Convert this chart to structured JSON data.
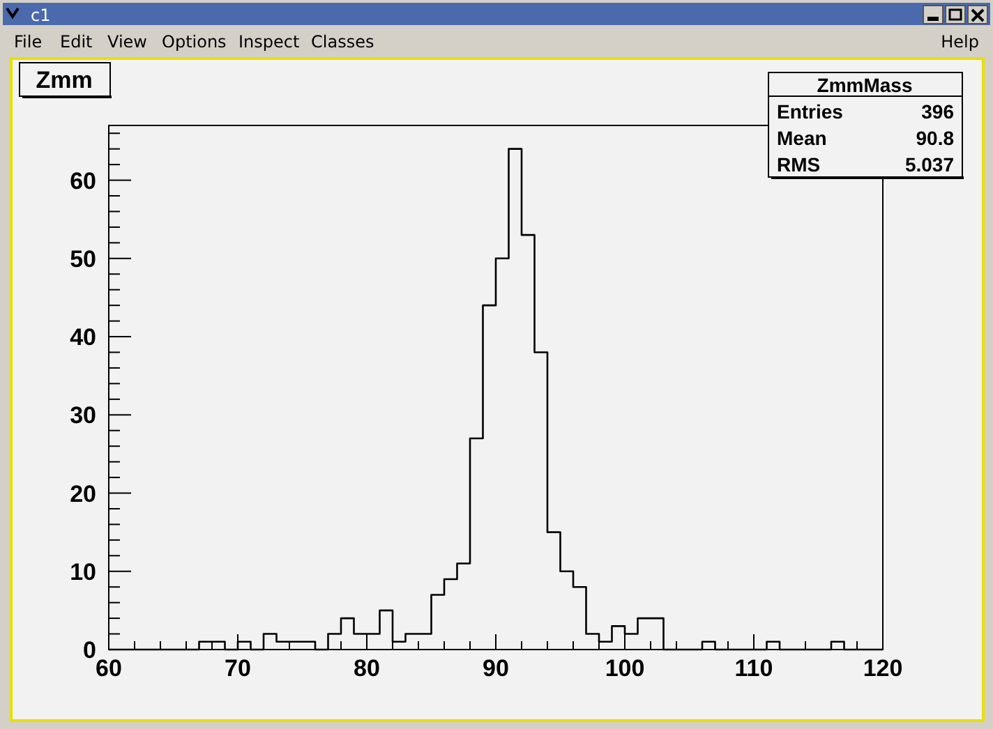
{
  "chart_data": {
    "type": "histogram",
    "title": "Zmm",
    "bins": [
      60,
      61,
      62,
      63,
      64,
      65,
      66,
      67,
      68,
      69,
      70,
      71,
      72,
      73,
      74,
      75,
      76,
      77,
      78,
      79,
      80,
      81,
      82,
      83,
      84,
      85,
      86,
      87,
      88,
      89,
      90,
      91,
      92,
      93,
      94,
      95,
      96,
      97,
      98,
      99,
      100,
      101,
      102,
      103,
      104,
      105,
      106,
      107,
      108,
      109,
      110,
      111,
      112,
      113,
      114,
      115,
      116,
      117,
      118,
      119,
      120
    ],
    "values": [
      0,
      0,
      0,
      0,
      0,
      0,
      0,
      1,
      1,
      0,
      1,
      0,
      2,
      1,
      1,
      1,
      0,
      2,
      4,
      2,
      2,
      5,
      1,
      2,
      2,
      7,
      9,
      11,
      27,
      44,
      50,
      64,
      53,
      38,
      15,
      10,
      8,
      2,
      1,
      3,
      2,
      4,
      4,
      0,
      0,
      0,
      1,
      0,
      0,
      0,
      0,
      1,
      0,
      0,
      0,
      0,
      1,
      0,
      0,
      0
    ],
    "color": "#000000",
    "xlim": [
      60,
      120
    ],
    "xticks": [
      60,
      {
        "value": 62,
        "label": null
      },
      {
        "value": 64,
        "label": null
      },
      {
        "value": 66,
        "label": null
      },
      {
        "value": 68,
        "label": null
      },
      70,
      {
        "value": 72,
        "label": null
      },
      {
        "value": 74,
        "label": null
      },
      {
        "value": 76,
        "label": null
      },
      {
        "value": 78,
        "label": null
      },
      80,
      {
        "value": 82,
        "label": null
      },
      {
        "value": 84,
        "label": null
      },
      {
        "value": 86,
        "label": null
      },
      {
        "value": 88,
        "label": null
      },
      90,
      {
        "value": 92,
        "label": null
      },
      {
        "value": 94,
        "label": null
      },
      {
        "value": 96,
        "label": null
      },
      {
        "value": 98,
        "label": null
      },
      100,
      {
        "value": 102,
        "label": null
      },
      {
        "value": 104,
        "label": null
      },
      {
        "value": 106,
        "label": null
      },
      {
        "value": 108,
        "label": null
      },
      110,
      {
        "value": 112,
        "label": null
      },
      {
        "value": 114,
        "label": null
      },
      {
        "value": 116,
        "label": null
      },
      {
        "value": 118,
        "label": null
      },
      120
    ],
    "ylim": [
      0,
      67
    ],
    "yticks": [
      0,
      {
        "value": 2,
        "label": null
      },
      {
        "value": 4,
        "label": null
      },
      {
        "value": 6,
        "label": null
      },
      {
        "value": 8,
        "label": null
      },
      10,
      {
        "value": 12,
        "label": null
      },
      {
        "value": 14,
        "label": null
      },
      {
        "value": 16,
        "label": null
      },
      {
        "value": 18,
        "label": null
      },
      20,
      {
        "value": 22,
        "label": null
      },
      {
        "value": 24,
        "label": null
      },
      {
        "value": 26,
        "label": null
      },
      {
        "value": 28,
        "label": null
      },
      30,
      {
        "value": 32,
        "label": null
      },
      {
        "value": 34,
        "label": null
      },
      {
        "value": 36,
        "label": null
      },
      {
        "value": 38,
        "label": null
      },
      40,
      {
        "value": 42,
        "label": null
      },
      {
        "value": 44,
        "label": null
      },
      {
        "value": 46,
        "label": null
      },
      {
        "value": 48,
        "label": null
      },
      50,
      {
        "value": 52,
        "label": null
      },
      {
        "value": 54,
        "label": null
      },
      {
        "value": 56,
        "label": null
      },
      {
        "value": 58,
        "label": null
      },
      60,
      {
        "value": 62,
        "label": null
      },
      {
        "value": 64,
        "label": null
      },
      {
        "value": 66,
        "label": null
      }
    ],
    "annotations": [
      "c1",
      "File",
      "Edit",
      "View",
      "Options",
      "Inspect",
      "Classes",
      "Help",
      "ZmmMass",
      "Entries",
      "396",
      "Mean",
      "90.8",
      "RMS",
      "5.037"
    ]
  }
}
